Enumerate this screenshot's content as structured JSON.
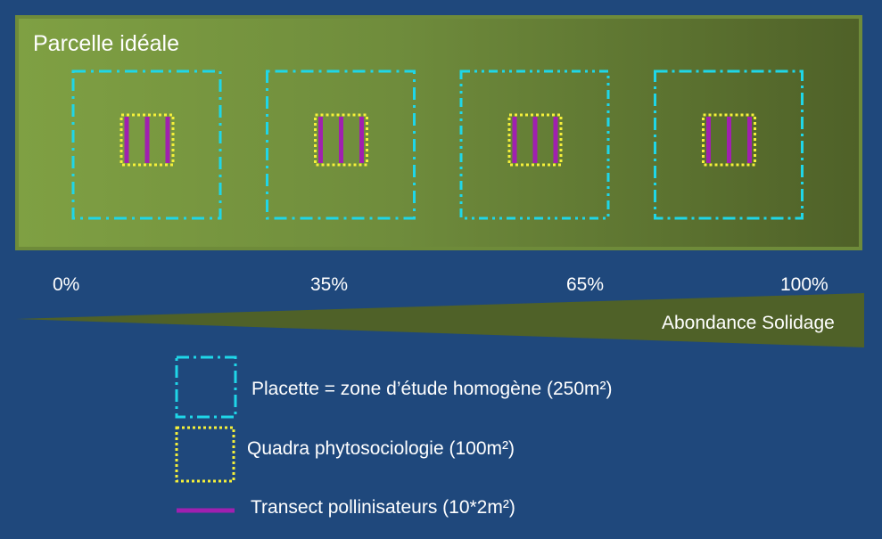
{
  "parcel": {
    "title": "Parcelle idéale",
    "background_start": "#7fa043",
    "background_end": "#4f6128",
    "placette_count": 4
  },
  "gradient": {
    "ticks": [
      "0%",
      "35%",
      "65%",
      "100%"
    ],
    "label": "Abondance Solidage",
    "color": "#4f6128"
  },
  "legend": {
    "placette": "Placette = zone d’étude homogène (250m²)",
    "quadra": "Quadra phytosociologie (100m²)",
    "transect": "Transect pollinisateurs (10*2m²)"
  },
  "colors": {
    "placette": "#1fd6e8",
    "quadra": "#f5f03a",
    "transect": "#a020b0",
    "page_background": "#1f487c"
  }
}
